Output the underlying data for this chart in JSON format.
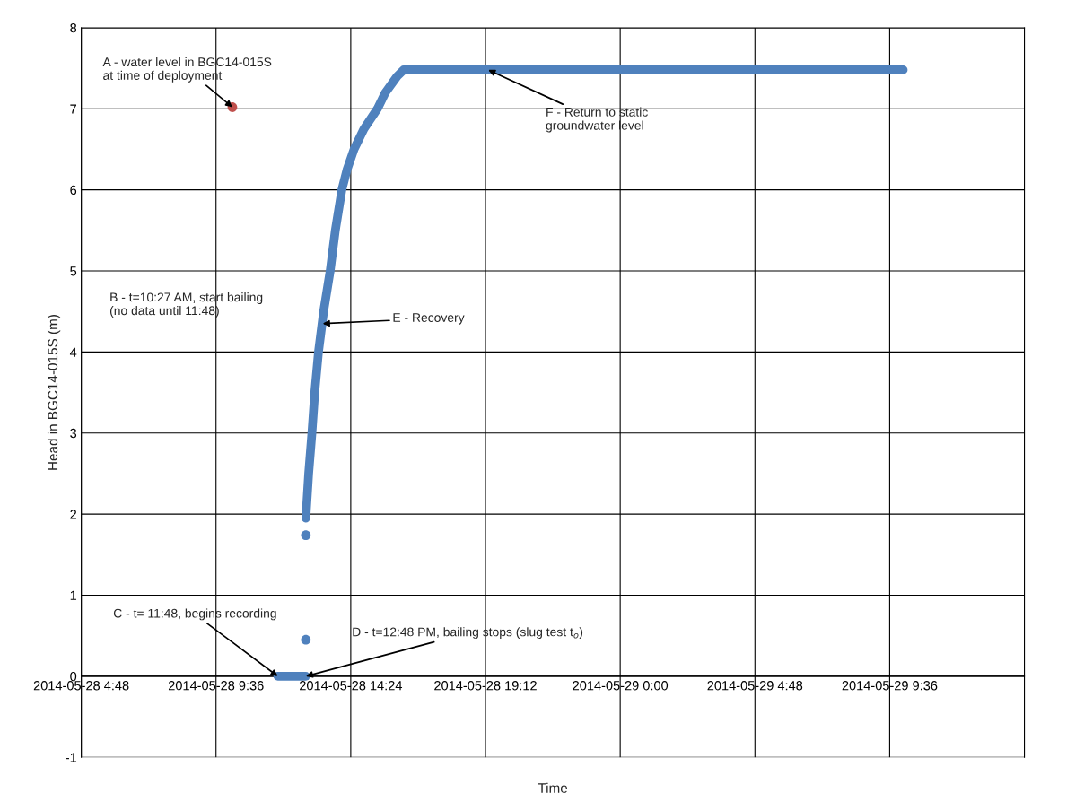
{
  "chart_data": {
    "type": "line",
    "xlabel": "Time",
    "ylabel": "Head in BGC14-015S (m)",
    "xlim": [
      "2014-05-28T04:48",
      "2014-05-29T14:24"
    ],
    "xticks": [
      {
        "value": "2014-05-28T04:48",
        "label": "2014-05-28 4:48"
      },
      {
        "value": "2014-05-28T09:36",
        "label": "2014-05-28 9:36"
      },
      {
        "value": "2014-05-28T14:24",
        "label": "2014-05-28 14:24"
      },
      {
        "value": "2014-05-28T19:12",
        "label": "2014-05-28 19:12"
      },
      {
        "value": "2014-05-29T00:00",
        "label": "2014-05-29 0:00"
      },
      {
        "value": "2014-05-29T04:48",
        "label": "2014-05-29 4:48"
      },
      {
        "value": "2014-05-29T09:36",
        "label": "2014-05-29 9:36"
      },
      {
        "value": "2014-05-29T14:24",
        "label": null
      }
    ],
    "ylim": [
      -1,
      8
    ],
    "yticks": [
      -1,
      0,
      1,
      2,
      3,
      4,
      5,
      6,
      7,
      8
    ],
    "grid": true,
    "legend": false,
    "series": [
      {
        "type": "scatter",
        "marker": "circle",
        "color": "#c0504d",
        "x": [
          "2014-05-28T10:11"
        ],
        "values": [
          7.02
        ]
      },
      {
        "color": "#4f81bd",
        "x": [
          "2014-05-28T11:48",
          "2014-05-28T12:48"
        ],
        "values": [
          0,
          0
        ]
      },
      {
        "type": "scatter",
        "marker": "circle",
        "color": "#4f81bd",
        "x": [
          "2014-05-28T12:48",
          "2014-05-28T12:48"
        ],
        "values": [
          0.45,
          1.74
        ]
      },
      {
        "color": "#4f81bd",
        "x": [
          "2014-05-28T12:48",
          "2014-05-28T12:54",
          "2014-05-28T13:01",
          "2014-05-28T13:07",
          "2014-05-28T13:15",
          "2014-05-28T13:26",
          "2014-05-28T13:40",
          "2014-05-28T13:51",
          "2014-05-28T14:05",
          "2014-05-28T14:16",
          "2014-05-28T14:31",
          "2014-05-28T14:52",
          "2014-05-28T15:21",
          "2014-05-28T15:38",
          "2014-05-28T16:03",
          "2014-05-28T16:17",
          "2014-05-29T10:05"
        ],
        "values": [
          1.95,
          2.5,
          3,
          3.5,
          4,
          4.5,
          5,
          5.5,
          6,
          6.25,
          6.5,
          6.75,
          7,
          7.2,
          7.4,
          7.48,
          7.48
        ]
      }
    ],
    "annotations": [
      {
        "text": "A - water level in BGC14-015S\nat time of deployment",
        "x": "2014-05-28T10:11",
        "y": 7.02
      },
      "B - t=10:27 AM, start bailing\n(no data until 11:48)",
      {
        "text": "C - t= 11:48, begins recording",
        "x": "2014-05-28T11:48",
        "y": 0
      },
      {
        "text": "D - t=12:48 PM, bailing stops (slug test t$_{o}$)",
        "x": "2014-05-28T12:48",
        "y": 0
      },
      {
        "text": "E - Recovery",
        "x": "2014-05-28T13:24",
        "y": 4.35
      },
      {
        "text": "F - Return to static\ngroundwater level",
        "x": "2014-05-28T19:18",
        "y": 7.48
      }
    ]
  }
}
